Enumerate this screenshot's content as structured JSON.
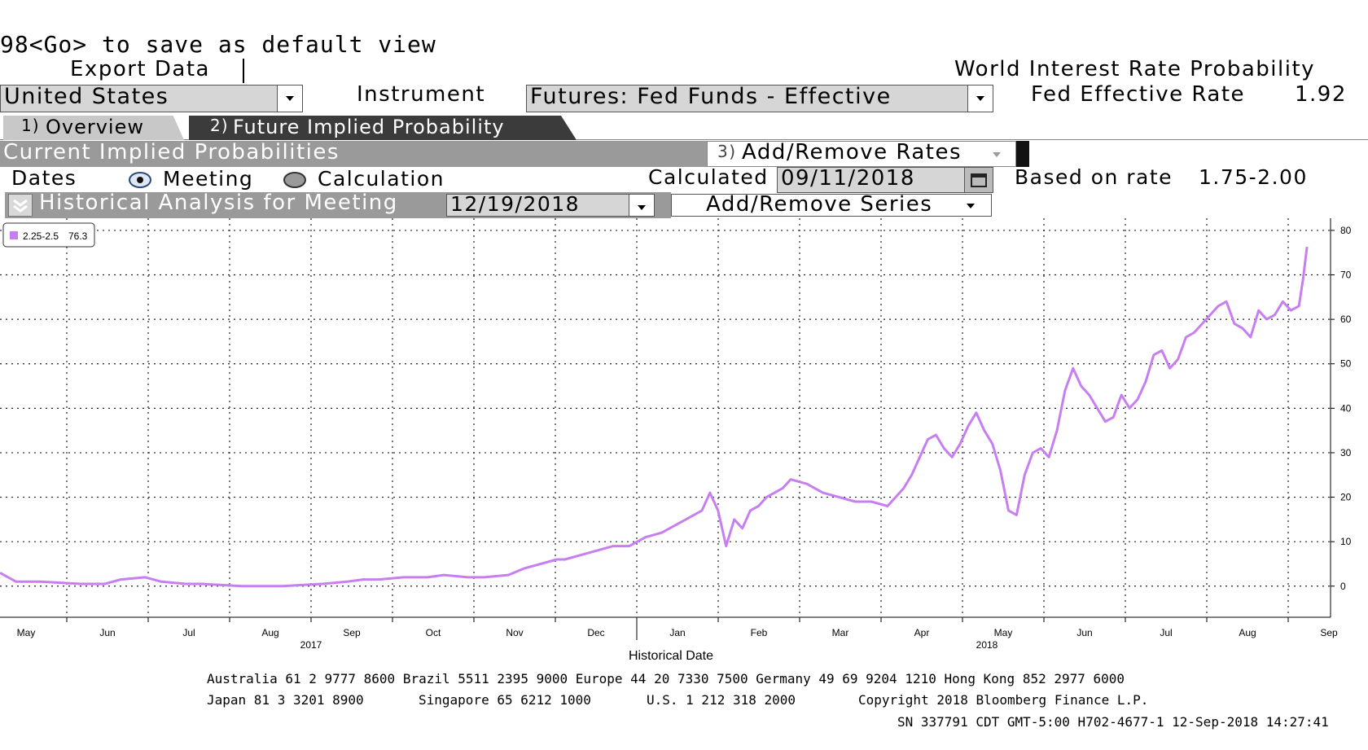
{
  "header": {
    "command_hint": "98<Go> to save as default view",
    "export_label": "Export Data",
    "app_title": "World Interest Rate Probability"
  },
  "controls": {
    "country": "United States",
    "instrument_label": "Instrument",
    "instrument": "Futures: Fed Funds - Effective",
    "fed_rate_label": "Fed Effective Rate",
    "fed_rate_value": "1.92"
  },
  "tabs": [
    {
      "num": "1)",
      "label": "Overview"
    },
    {
      "num": "2)",
      "label": "Future Implied Probability"
    }
  ],
  "section": {
    "title": "Current Implied Probabilities",
    "add_remove_rates_num": "3)",
    "add_remove_rates": "Add/Remove Rates"
  },
  "dates": {
    "label": "Dates",
    "option_meeting": "Meeting",
    "option_calculation": "Calculation",
    "selected": "Meeting",
    "calculated_label": "Calculated",
    "calculated_value": "09/11/2018",
    "based_on_label": "Based on rate",
    "based_on_value": "1.75-2.00"
  },
  "historical": {
    "title": "Historical Analysis for Meeting",
    "meeting_date": "12/19/2018",
    "add_remove_series": "Add/Remove Series"
  },
  "chart_data": {
    "type": "line",
    "xlabel": "Historical Date",
    "ylim": [
      -7,
      82
    ],
    "yticks": [
      0,
      10,
      20,
      30,
      40,
      50,
      60,
      70,
      80
    ],
    "grid": true,
    "legend_position": "top-left",
    "month_ticks": [
      "May",
      "Jun",
      "Jul",
      "Aug",
      "Sep",
      "Oct",
      "Nov",
      "Dec",
      "Jan",
      "Feb",
      "Mar",
      "Apr",
      "May",
      "Jun",
      "Jul",
      "Aug",
      "Sep"
    ],
    "year_labels": [
      {
        "label": "2017",
        "at_month": 3.5
      },
      {
        "label": "2018",
        "at_month": 11.8
      }
    ],
    "series": [
      {
        "name": "2.25-2.5",
        "last_value_label": "76.3",
        "color": "#c77ef0",
        "months": [
          0,
          0.2,
          0.5,
          1,
          1.3,
          1.5,
          1.8,
          2,
          2.3,
          2.5,
          3,
          3.5,
          4,
          4.3,
          4.5,
          4.7,
          5,
          5.3,
          5.5,
          5.8,
          6,
          6.3,
          6.5,
          6.7,
          6.9,
          7,
          7.2,
          7.4,
          7.6,
          7.8,
          8,
          8.2,
          8.4,
          8.5,
          8.6,
          8.7,
          8.8,
          8.9,
          9,
          9.1,
          9.2,
          9.3,
          9.4,
          9.5,
          9.6,
          9.7,
          9.8,
          10,
          10.2,
          10.4,
          10.6,
          10.8,
          11,
          11.1,
          11.2,
          11.3,
          11.4,
          11.5,
          11.6,
          11.7,
          11.8,
          11.9,
          12,
          12.1,
          12.2,
          12.3,
          12.4,
          12.5,
          12.6,
          12.7,
          12.8,
          12.9,
          13,
          13.1,
          13.2,
          13.3,
          13.4,
          13.5,
          13.6,
          13.7,
          13.8,
          13.9,
          14,
          14.1,
          14.2,
          14.3,
          14.4,
          14.5,
          14.6,
          14.7,
          14.8,
          14.9,
          15,
          15.1,
          15.2,
          15.3,
          15.4,
          15.5,
          15.6,
          15.7,
          15.8,
          15.9,
          16,
          16.1,
          16.15,
          16.2
        ],
        "values": [
          3,
          1,
          1,
          0.5,
          0.5,
          1.5,
          2,
          1,
          0.5,
          0.5,
          0,
          0,
          0.5,
          1,
          1.5,
          1.5,
          2,
          2,
          2.5,
          2,
          2,
          2.5,
          4,
          5,
          6,
          6,
          7,
          8,
          9,
          9,
          11,
          12,
          14,
          15,
          16,
          17,
          21,
          17,
          9,
          15,
          13,
          17,
          18,
          20,
          21,
          22,
          24,
          23,
          21,
          20,
          19,
          19,
          18,
          20,
          22,
          25,
          29,
          33,
          34,
          31,
          29,
          32,
          36,
          39,
          35,
          32,
          26,
          17,
          16,
          25,
          30,
          31,
          29,
          35,
          44,
          49,
          45,
          43,
          40,
          37,
          38,
          43,
          40,
          42,
          46,
          52,
          53,
          49,
          51,
          56,
          57,
          59,
          61,
          63,
          64,
          59,
          58,
          56,
          62,
          60,
          61,
          64,
          62,
          63,
          69,
          76.3
        ]
      }
    ]
  },
  "footer": {
    "line1": "Australia 61 2 9777 8600 Brazil 5511 2395 9000 Europe 44 20 7330 7500 Germany 49 69 9204 1210 Hong Kong 852 2977 6000",
    "line2_a": "Japan 81 3 3201 8900",
    "line2_b": "Singapore 65 6212 1000",
    "line2_c": "U.S. 1 212 318 2000",
    "line2_d": "Copyright 2018 Bloomberg Finance L.P.",
    "line3": "SN 337791 CDT  GMT-5:00 H702-4677-1 12-Sep-2018 14:27:41"
  }
}
